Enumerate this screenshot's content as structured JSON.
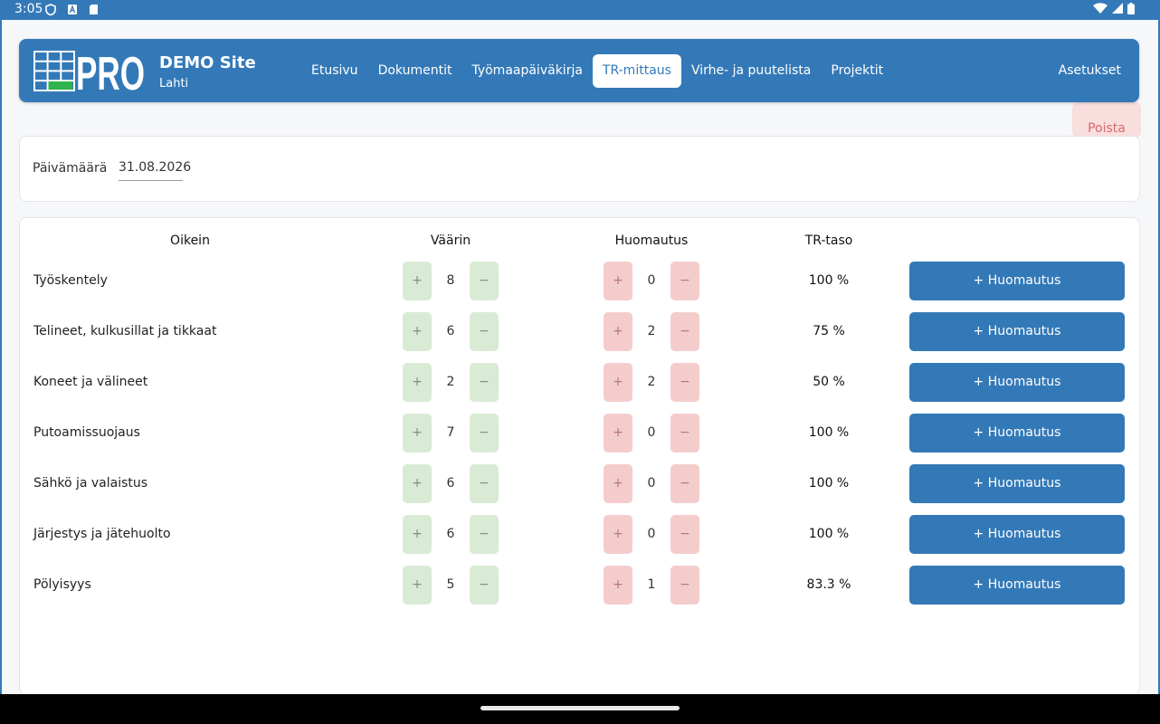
{
  "status_bar": {
    "time": "3:05"
  },
  "colors": {
    "primary": "#3379b8",
    "green_btn": "#d9ebd5",
    "red_btn": "#f5cccc",
    "delete_bg": "#f9dede"
  },
  "header": {
    "logo_text": "PRO",
    "site_name": "DEMO Site",
    "site_city": "Lahti",
    "nav": [
      "Etusivu",
      "Dokumentit",
      "Työmaapäiväkirja",
      "TR-mittaus",
      "Virhe- ja puutelista",
      "Projektit"
    ],
    "active_nav": "TR-mittaus",
    "settings": "Asetukset"
  },
  "delete_button": "Poista",
  "date": {
    "label": "Päivämäärä",
    "value": "31.08.2026"
  },
  "table": {
    "headers": {
      "correct": "Oikein",
      "wrong": "Väärin",
      "note": "Huomautus",
      "level": "TR-taso"
    },
    "plus": "+",
    "minus": "−",
    "note_button": "+ Huomautus",
    "rows": [
      {
        "label": "Työskentely",
        "correct": "8",
        "wrong": "0",
        "level": "100 %"
      },
      {
        "label": "Telineet, kulkusillat ja tikkaat",
        "correct": "6",
        "wrong": "2",
        "level": "75 %"
      },
      {
        "label": "Koneet ja välineet",
        "correct": "2",
        "wrong": "2",
        "level": "50 %"
      },
      {
        "label": "Putoamissuojaus",
        "correct": "7",
        "wrong": "0",
        "level": "100 %"
      },
      {
        "label": "Sähkö ja valaistus",
        "correct": "6",
        "wrong": "0",
        "level": "100 %"
      },
      {
        "label": "Järjestys ja jätehuolto",
        "correct": "6",
        "wrong": "0",
        "level": "100 %"
      },
      {
        "label": "Pölyisyys",
        "correct": "5",
        "wrong": "1",
        "level": "83.3 %"
      }
    ]
  }
}
